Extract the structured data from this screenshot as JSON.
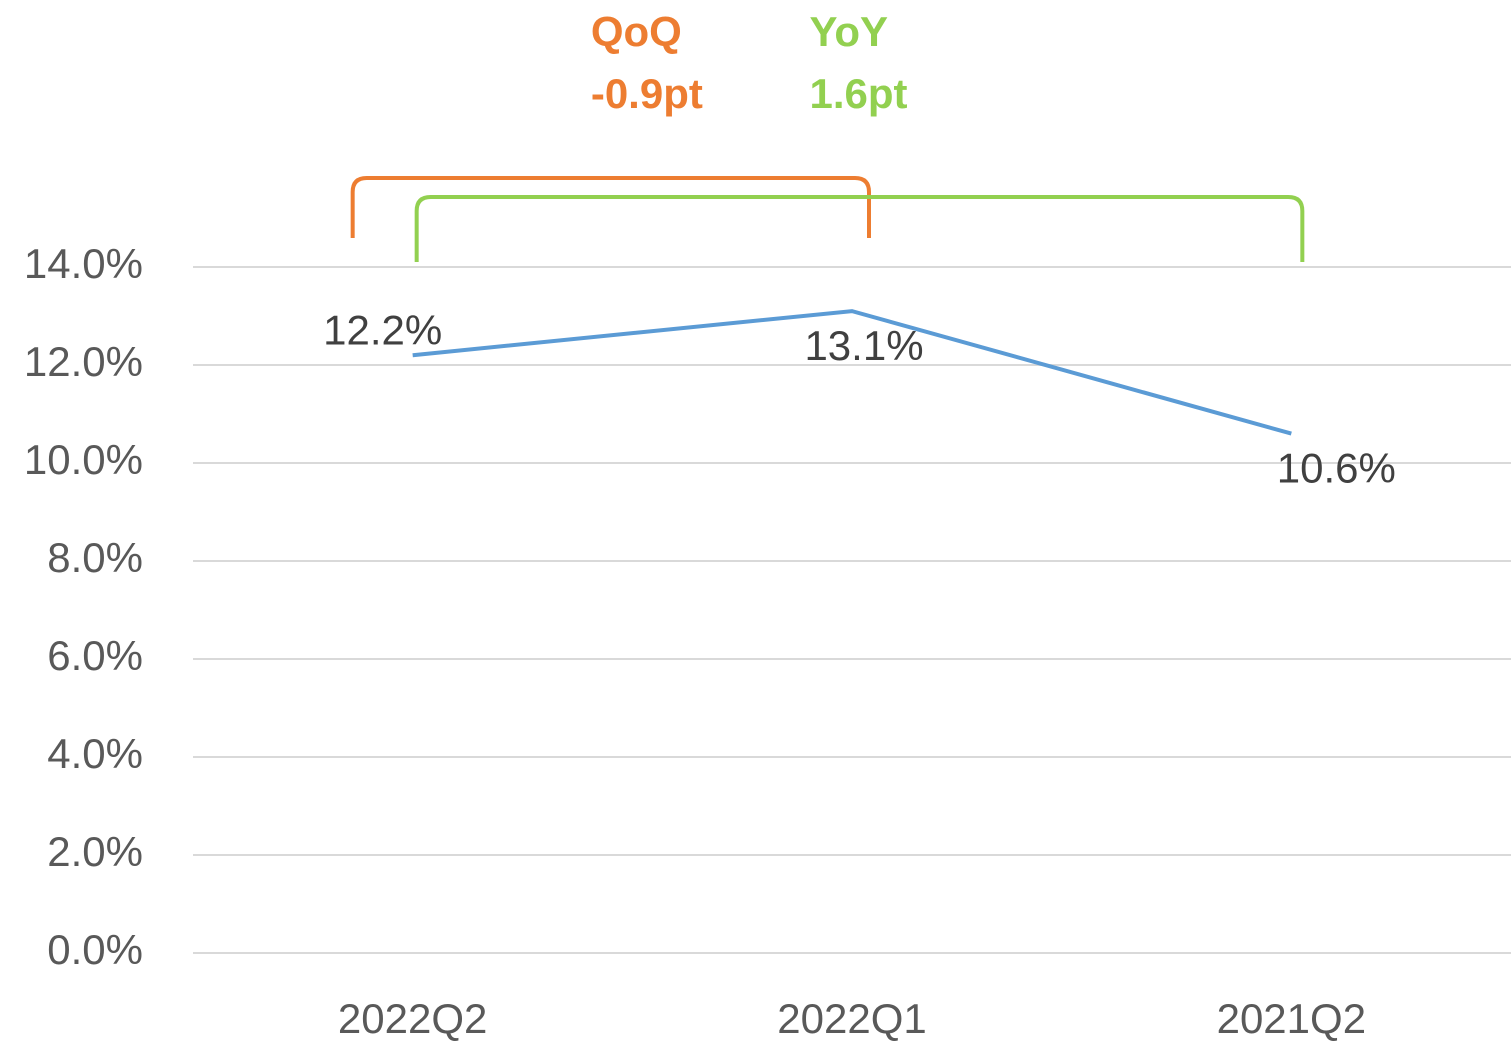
{
  "chart_data": {
    "type": "line",
    "categories": [
      "2022Q2",
      "2022Q1",
      "2021Q2"
    ],
    "series": [
      {
        "name": "Rate",
        "color": "#5b9bd5",
        "values": [
          12.2,
          13.1,
          10.6
        ],
        "value_labels": [
          "12.2%",
          "13.1%",
          "10.6%"
        ]
      }
    ],
    "ylim": [
      0,
      14
    ],
    "yticks": [
      {
        "value": 0,
        "label": "0.0%"
      },
      {
        "value": 2,
        "label": "2.0%"
      },
      {
        "value": 4,
        "label": "4.0%"
      },
      {
        "value": 6,
        "label": "6.0%"
      },
      {
        "value": 8,
        "label": "8.0%"
      },
      {
        "value": 10,
        "label": "10.0%"
      },
      {
        "value": 12,
        "label": "12.0%"
      },
      {
        "value": 14,
        "label": "14.0%"
      }
    ],
    "grid": true,
    "annotations": [
      {
        "title": "QoQ",
        "text": "-0.9pt",
        "color": "#ed7d31",
        "between": [
          "2022Q2",
          "2022Q1"
        ]
      },
      {
        "title": "YoY",
        "text": "1.6pt",
        "color": "#92d050",
        "between": [
          "2022Q2",
          "2021Q2"
        ]
      }
    ]
  }
}
